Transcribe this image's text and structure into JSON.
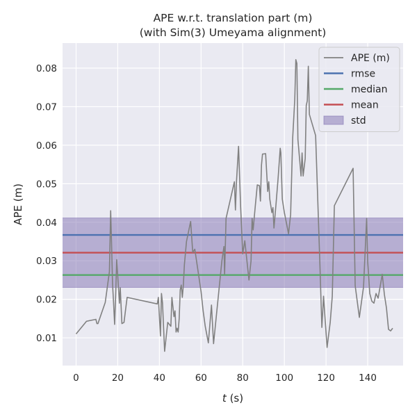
{
  "chart_data": {
    "type": "line",
    "title": "APE w.r.t. translation part (m)",
    "subtitle": "(with Sim(3) Umeyama alignment)",
    "xlabel_italic": "t",
    "xlabel_unit": " (s)",
    "ylabel": "APE (m)",
    "xlim": [
      -6.5,
      157
    ],
    "ylim": [
      0.0028,
      0.0865
    ],
    "xticks": [
      0,
      20,
      40,
      60,
      80,
      100,
      120,
      140
    ],
    "yticks": [
      0.01,
      0.02,
      0.03,
      0.04,
      0.05,
      0.06,
      0.07,
      0.08
    ],
    "grid": true,
    "legend_position": "top-right",
    "colors": {
      "background": "#EAEAF2",
      "grid": "#FFFFFF",
      "ape": "#808080",
      "rmse": "#4C72B0",
      "median": "#55A868",
      "mean": "#C44E52",
      "std": "#8172B2"
    },
    "stats": {
      "rmse": 0.0367,
      "median": 0.0263,
      "mean": 0.0321,
      "std": 0.009
    },
    "legend": [
      {
        "key": "ape",
        "label": "APE (m)",
        "kind": "line"
      },
      {
        "key": "rmse",
        "label": "rmse",
        "kind": "line"
      },
      {
        "key": "median",
        "label": "median",
        "kind": "line"
      },
      {
        "key": "mean",
        "label": "mean",
        "kind": "line"
      },
      {
        "key": "std",
        "label": "std",
        "kind": "patch"
      }
    ],
    "series": [
      {
        "name": "APE (m)",
        "points": [
          [
            0,
            0.011
          ],
          [
            5,
            0.0143
          ],
          [
            9.5,
            0.0148
          ],
          [
            10,
            0.0137
          ],
          [
            10.5,
            0.0137
          ],
          [
            11,
            0.0145
          ],
          [
            14,
            0.0192
          ],
          [
            16,
            0.0272
          ],
          [
            16.6,
            0.043
          ],
          [
            17,
            0.035
          ],
          [
            17.5,
            0.024
          ],
          [
            18,
            0.019
          ],
          [
            18.5,
            0.0135
          ],
          [
            19,
            0.021
          ],
          [
            19.5,
            0.0303
          ],
          [
            20,
            0.026
          ],
          [
            20.8,
            0.019
          ],
          [
            21.2,
            0.023
          ],
          [
            22,
            0.0137
          ],
          [
            23,
            0.014
          ],
          [
            24.5,
            0.0205
          ],
          [
            39,
            0.0188
          ],
          [
            39.5,
            0.0205
          ],
          [
            40.5,
            0.0105
          ],
          [
            41,
            0.0215
          ],
          [
            41.5,
            0.019
          ],
          [
            42.5,
            0.0065
          ],
          [
            44,
            0.014
          ],
          [
            45.5,
            0.013
          ],
          [
            46,
            0.0205
          ],
          [
            47,
            0.0155
          ],
          [
            47.5,
            0.017
          ],
          [
            48,
            0.0115
          ],
          [
            48.5,
            0.0125
          ],
          [
            49,
            0.0115
          ],
          [
            49.5,
            0.015
          ],
          [
            50,
            0.0225
          ],
          [
            50.5,
            0.0237
          ],
          [
            51,
            0.0205
          ],
          [
            51.5,
            0.0237
          ],
          [
            52,
            0.029
          ],
          [
            53,
            0.035
          ],
          [
            55,
            0.0402
          ],
          [
            56,
            0.0322
          ],
          [
            57,
            0.033
          ],
          [
            60,
            0.022
          ],
          [
            61,
            0.017
          ],
          [
            62,
            0.013
          ],
          [
            63.5,
            0.0087
          ],
          [
            65,
            0.0185
          ],
          [
            66,
            0.0085
          ],
          [
            70,
            0.03
          ],
          [
            71,
            0.0337
          ],
          [
            71.3,
            0.0265
          ],
          [
            72,
            0.041
          ],
          [
            76,
            0.0505
          ],
          [
            76.5,
            0.0432
          ],
          [
            77,
            0.0505
          ],
          [
            78,
            0.0597
          ],
          [
            79,
            0.044
          ],
          [
            80,
            0.0318
          ],
          [
            81,
            0.0352
          ],
          [
            83,
            0.025
          ],
          [
            84,
            0.03
          ],
          [
            84.5,
            0.041
          ],
          [
            85,
            0.038
          ],
          [
            86,
            0.044
          ],
          [
            87,
            0.0497
          ],
          [
            88,
            0.0495
          ],
          [
            88.5,
            0.0455
          ],
          [
            89,
            0.0548
          ],
          [
            89.5,
            0.0577
          ],
          [
            91,
            0.0578
          ],
          [
            92,
            0.048
          ],
          [
            92.5,
            0.0505
          ],
          [
            93,
            0.046
          ],
          [
            94,
            0.0425
          ],
          [
            94.5,
            0.0438
          ],
          [
            95,
            0.0385
          ],
          [
            96,
            0.0448
          ],
          [
            97,
            0.0515
          ],
          [
            98,
            0.0592
          ],
          [
            98.3,
            0.058
          ],
          [
            99,
            0.046
          ],
          [
            100,
            0.0425
          ],
          [
            102,
            0.037
          ],
          [
            103,
            0.042
          ],
          [
            104,
            0.062
          ],
          [
            105,
            0.072
          ],
          [
            105.5,
            0.0822
          ],
          [
            106,
            0.0812
          ],
          [
            106.5,
            0.0615
          ],
          [
            108,
            0.052
          ],
          [
            108.5,
            0.058
          ],
          [
            109,
            0.052
          ],
          [
            110,
            0.0565
          ],
          [
            110.5,
            0.0703
          ],
          [
            111,
            0.0715
          ],
          [
            111.5,
            0.0805
          ],
          [
            112,
            0.068
          ],
          [
            115,
            0.0625
          ],
          [
            117,
            0.03
          ],
          [
            118,
            0.0127
          ],
          [
            118.8,
            0.0208
          ],
          [
            120.5,
            0.0075
          ],
          [
            122,
            0.014
          ],
          [
            123,
            0.0208
          ],
          [
            124,
            0.0443
          ],
          [
            133,
            0.054
          ],
          [
            134,
            0.0235
          ],
          [
            136,
            0.0153
          ],
          [
            138,
            0.0232
          ],
          [
            139.5,
            0.041
          ],
          [
            140,
            0.0298
          ],
          [
            141,
            0.0215
          ],
          [
            142,
            0.0195
          ],
          [
            143,
            0.019
          ],
          [
            144,
            0.0215
          ],
          [
            145,
            0.0203
          ],
          [
            147,
            0.0265
          ],
          [
            148,
            0.0213
          ],
          [
            149,
            0.0178
          ],
          [
            150,
            0.0122
          ],
          [
            151,
            0.0118
          ],
          [
            152,
            0.0125
          ]
        ]
      }
    ]
  }
}
